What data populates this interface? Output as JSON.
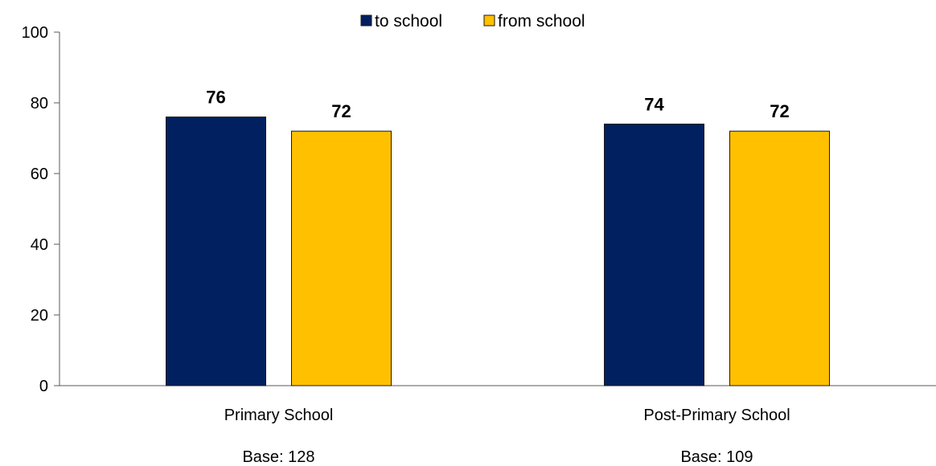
{
  "chart_data": {
    "type": "bar",
    "categories": [
      "Primary School",
      "Post-Primary School"
    ],
    "category_bases": [
      "Base: 128",
      "Base: 109"
    ],
    "series": [
      {
        "name": "to school",
        "values": [
          76,
          74
        ],
        "color": "#002060"
      },
      {
        "name": "from school",
        "values": [
          72,
          72
        ],
        "color": "#FFC000"
      }
    ],
    "ylim": [
      0,
      100
    ],
    "yticks": [
      0,
      20,
      40,
      60,
      80,
      100
    ],
    "legend_position": "top-center",
    "grid": false,
    "title": "",
    "xlabel": "",
    "ylabel": ""
  }
}
